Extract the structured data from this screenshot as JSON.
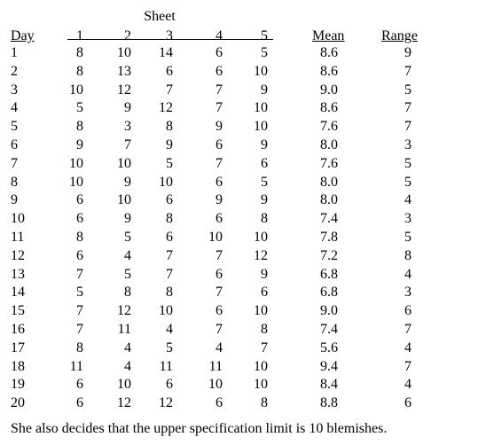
{
  "header": {
    "sheet_label": "Sheet",
    "day_label": "Day",
    "sheet_numbers": [
      "1",
      "2",
      "3",
      "4",
      "5"
    ],
    "mean_label": "Mean",
    "range_label": "Range"
  },
  "rows": [
    {
      "day": "1",
      "s": [
        "8",
        "10",
        "14",
        "6",
        "5"
      ],
      "mean": "8.6",
      "range": "9"
    },
    {
      "day": "2",
      "s": [
        "8",
        "13",
        "6",
        "6",
        "10"
      ],
      "mean": "8.6",
      "range": "7"
    },
    {
      "day": "3",
      "s": [
        "10",
        "12",
        "7",
        "7",
        "9"
      ],
      "mean": "9.0",
      "range": "5"
    },
    {
      "day": "4",
      "s": [
        "5",
        "9",
        "12",
        "7",
        "10"
      ],
      "mean": "8.6",
      "range": "7"
    },
    {
      "day": "5",
      "s": [
        "8",
        "3",
        "8",
        "9",
        "10"
      ],
      "mean": "7.6",
      "range": "7"
    },
    {
      "day": "6",
      "s": [
        "9",
        "7",
        "9",
        "6",
        "9"
      ],
      "mean": "8.0",
      "range": "3"
    },
    {
      "day": "7",
      "s": [
        "10",
        "10",
        "5",
        "7",
        "6"
      ],
      "mean": "7.6",
      "range": "5"
    },
    {
      "day": "8",
      "s": [
        "10",
        "9",
        "10",
        "6",
        "5"
      ],
      "mean": "8.0",
      "range": "5"
    },
    {
      "day": "9",
      "s": [
        "6",
        "10",
        "6",
        "9",
        "9"
      ],
      "mean": "8.0",
      "range": "4"
    },
    {
      "day": "10",
      "s": [
        "6",
        "9",
        "8",
        "6",
        "8"
      ],
      "mean": "7.4",
      "range": "3"
    },
    {
      "day": "11",
      "s": [
        "8",
        "5",
        "6",
        "10",
        "10"
      ],
      "mean": "7.8",
      "range": "5"
    },
    {
      "day": "12",
      "s": [
        "6",
        "4",
        "7",
        "7",
        "12"
      ],
      "mean": "7.2",
      "range": "8"
    },
    {
      "day": "13",
      "s": [
        "7",
        "5",
        "7",
        "6",
        "9"
      ],
      "mean": "6.8",
      "range": "4"
    },
    {
      "day": "14",
      "s": [
        "5",
        "8",
        "8",
        "7",
        "6"
      ],
      "mean": "6.8",
      "range": "3"
    },
    {
      "day": "15",
      "s": [
        "7",
        "12",
        "10",
        "6",
        "10"
      ],
      "mean": "9.0",
      "range": "6"
    },
    {
      "day": "16",
      "s": [
        "7",
        "11",
        "4",
        "7",
        "8"
      ],
      "mean": "7.4",
      "range": "7"
    },
    {
      "day": "17",
      "s": [
        "8",
        "4",
        "5",
        "4",
        "7"
      ],
      "mean": "5.6",
      "range": "4"
    },
    {
      "day": "18",
      "s": [
        "11",
        "4",
        "11",
        "11",
        "10"
      ],
      "mean": "9.4",
      "range": "7"
    },
    {
      "day": "19",
      "s": [
        "6",
        "10",
        "6",
        "10",
        "10"
      ],
      "mean": "8.4",
      "range": "4"
    },
    {
      "day": "20",
      "s": [
        "6",
        "12",
        "12",
        "6",
        "8"
      ],
      "mean": "8.8",
      "range": "6"
    }
  ],
  "footer_text": "She also decides that the upper specification limit is 10 blemishes."
}
